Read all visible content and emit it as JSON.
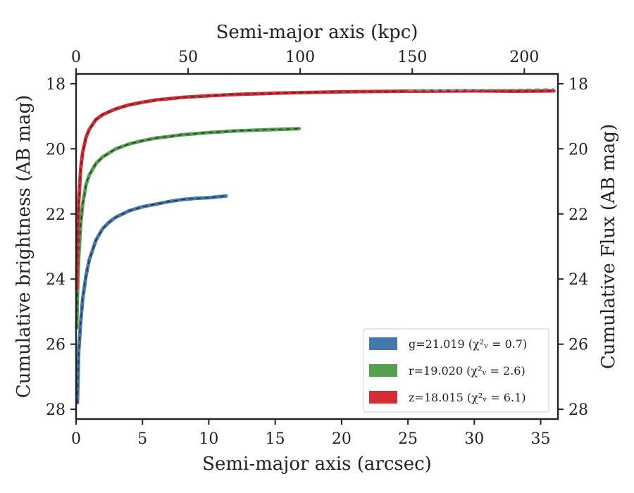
{
  "chart_data": {
    "type": "line",
    "xlabel": "Semi-major axis (arcsec)",
    "x2label": "Semi-major axis (kpc)",
    "ylabel": "Cumulative brightness (AB mag)",
    "y2label": "Cumulative Flux (AB mag)",
    "xlim": [
      0,
      36.3
    ],
    "ylim": [
      17.7,
      28.3
    ],
    "y_inverted": true,
    "x2lim": [
      0,
      215
    ],
    "xticks": [
      0,
      5,
      10,
      15,
      20,
      25,
      30,
      35
    ],
    "yticks": [
      18,
      20,
      22,
      24,
      26,
      28
    ],
    "x2ticks": [
      0,
      50,
      100,
      150,
      200
    ],
    "legend_position": "lower-right",
    "legend": [
      {
        "label": "g=21.019 (χ²ᵥ = 0.7)",
        "color": "#4477aa"
      },
      {
        "label": "r=19.020 (χ²ᵥ = 2.6)",
        "color": "#55a050"
      },
      {
        "label": "z=18.015 (χ²ᵥ = 6.1)",
        "color": "#d62e35"
      }
    ],
    "series": [
      {
        "name": "g",
        "color": "#4477aa",
        "x": [
          0.1,
          0.2,
          0.35,
          0.5,
          0.75,
          1.0,
          1.5,
          2.0,
          2.5,
          3.0,
          4.0,
          5.0,
          6.0,
          7.0,
          8.0,
          9.0,
          10.0,
          11.3
        ],
        "y": [
          27.8,
          26.2,
          25.3,
          24.6,
          23.9,
          23.4,
          22.8,
          22.45,
          22.25,
          22.1,
          21.9,
          21.78,
          21.7,
          21.62,
          21.56,
          21.52,
          21.5,
          21.45
        ]
      },
      {
        "name": "r",
        "color": "#55a050",
        "x": [
          0.05,
          0.1,
          0.2,
          0.35,
          0.5,
          0.75,
          1.0,
          1.5,
          2.0,
          3.0,
          4.0,
          5.0,
          6.0,
          8.0,
          10.0,
          12.0,
          14.0,
          16.8
        ],
        "y": [
          25.5,
          24.5,
          23.3,
          22.3,
          21.7,
          21.1,
          20.8,
          20.45,
          20.25,
          20.0,
          19.85,
          19.75,
          19.67,
          19.57,
          19.5,
          19.45,
          19.42,
          19.38
        ]
      },
      {
        "name": "z",
        "color": "#d62e35",
        "x": [
          0.05,
          0.1,
          0.2,
          0.35,
          0.5,
          0.75,
          1.0,
          1.5,
          2.0,
          3.0,
          4.0,
          5.0,
          6.0,
          8.0,
          10.0,
          12.0,
          15.0,
          20.0,
          25.0,
          30.0,
          33.0,
          36.0
        ],
        "y": [
          24.3,
          23.0,
          21.6,
          20.6,
          20.1,
          19.65,
          19.4,
          19.1,
          18.95,
          18.77,
          18.65,
          18.57,
          18.5,
          18.42,
          18.37,
          18.33,
          18.29,
          18.25,
          18.23,
          18.22,
          18.23,
          18.22
        ]
      },
      {
        "name": "",
        "color": "#888888",
        "dashed": true,
        "x": [
          25.0,
          30.0,
          36.0
        ],
        "y": [
          18.21,
          18.19,
          18.16
        ]
      }
    ]
  }
}
